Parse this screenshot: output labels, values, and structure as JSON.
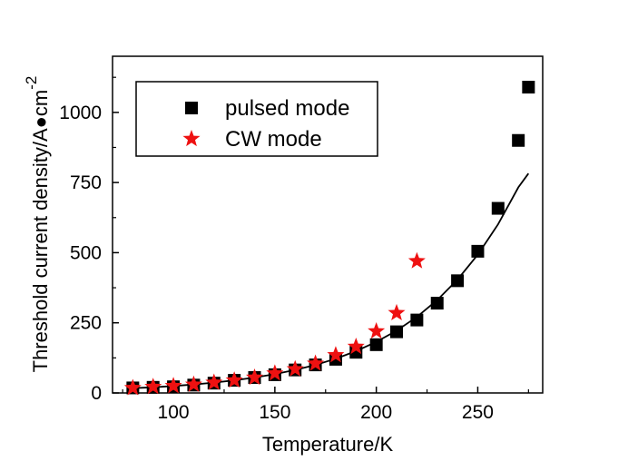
{
  "chart_data": {
    "type": "scatter",
    "title": "",
    "xlabel": "Temperature/K",
    "ylabel_main": "Threshold current density/A●cm",
    "ylabel_superscript": "-2",
    "xlim": [
      70,
      282
    ],
    "ylim": [
      0,
      1200
    ],
    "xticks": [
      100,
      150,
      200,
      250
    ],
    "xtick_labels": [
      "100",
      "150",
      "200",
      "250"
    ],
    "yticks": [
      0,
      250,
      500,
      750,
      1000
    ],
    "ytick_labels": [
      "0",
      "250",
      "500",
      "750",
      "1000"
    ],
    "grid": false,
    "legend_position": "top-left",
    "series": [
      {
        "name": "pulsed mode",
        "marker": "square",
        "color": "#000000",
        "x": [
          80,
          90,
          100,
          110,
          120,
          130,
          140,
          150,
          160,
          170,
          180,
          190,
          200,
          210,
          220,
          230,
          240,
          250,
          260,
          270,
          275
        ],
        "y": [
          18,
          20,
          22,
          28,
          35,
          45,
          55,
          65,
          82,
          100,
          120,
          145,
          172,
          218,
          260,
          320,
          400,
          505,
          658,
          900,
          1090
        ]
      },
      {
        "name": "CW mode",
        "marker": "star",
        "color": "#ee1111",
        "x": [
          80,
          90,
          100,
          110,
          120,
          130,
          140,
          150,
          160,
          170,
          180,
          190,
          200,
          210,
          220
        ],
        "y": [
          18,
          22,
          25,
          30,
          37,
          45,
          55,
          70,
          85,
          105,
          135,
          165,
          220,
          285,
          470
        ]
      }
    ],
    "fit_curve": {
      "type": "exponential",
      "color": "#000000",
      "x": [
        80,
        90,
        100,
        110,
        120,
        130,
        140,
        150,
        160,
        170,
        180,
        190,
        200,
        210,
        220,
        230,
        240,
        250,
        260,
        270,
        275
      ],
      "y": [
        17,
        20,
        25,
        30,
        37,
        45,
        55,
        67,
        82,
        100,
        122,
        149,
        182,
        222,
        271,
        331,
        404,
        493,
        601,
        733,
        782
      ]
    }
  }
}
